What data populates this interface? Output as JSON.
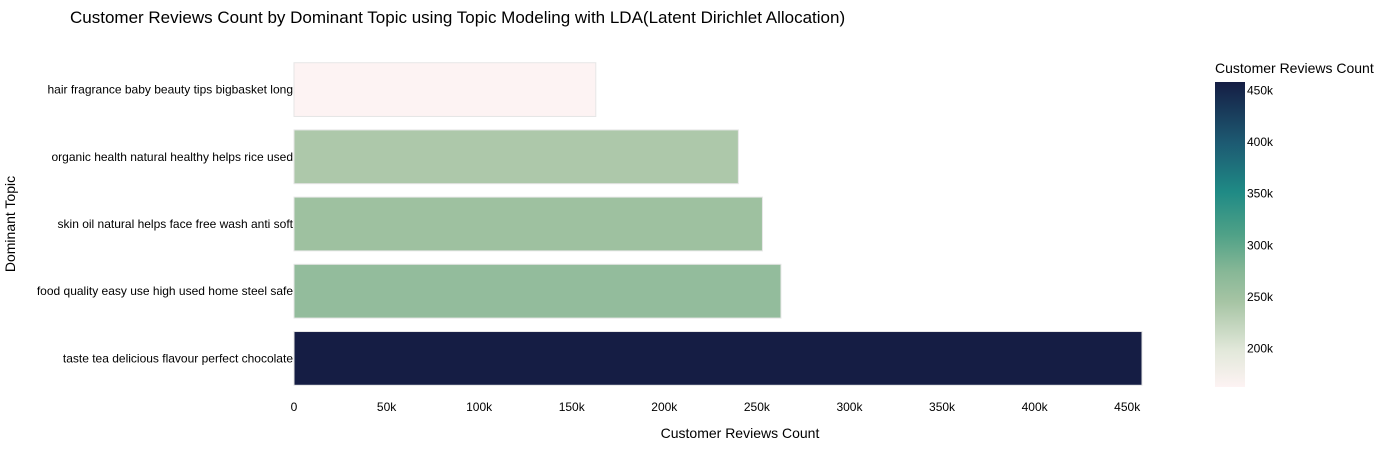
{
  "chart_data": {
    "type": "bar",
    "orientation": "horizontal",
    "title": "Customer Reviews Count by Dominant Topic using Topic Modeling with LDA(Latent Dirichlet Allocation)",
    "xlabel": "Customer Reviews Count",
    "ylabel": "Dominant Topic",
    "xlim": [
      0,
      458000
    ],
    "x_ticks": [
      0,
      50000,
      100000,
      150000,
      200000,
      250000,
      300000,
      350000,
      400000,
      450000
    ],
    "x_tick_labels": [
      "0",
      "50k",
      "100k",
      "150k",
      "200k",
      "250k",
      "300k",
      "350k",
      "400k",
      "450k"
    ],
    "categories": [
      "taste tea delicious flavour perfect chocolate",
      "food quality easy use high used home steel safe",
      "skin oil natural helps face free wash anti soft",
      "organic health natural healthy helps rice used",
      "hair fragrance baby beauty tips bigbasket long"
    ],
    "values": [
      458000,
      263000,
      253000,
      240000,
      163000
    ],
    "colorbar": {
      "title": "Customer Reviews Count",
      "min": 163000,
      "max": 458000,
      "ticks": [
        200000,
        250000,
        300000,
        350000,
        400000,
        450000
      ],
      "tick_labels": [
        "200k",
        "250k",
        "300k",
        "350k",
        "400k",
        "450k"
      ],
      "colorscale": [
        [
          0.0,
          "#fdf3f3"
        ],
        [
          0.12,
          "#e2e8da"
        ],
        [
          0.28,
          "#a6c4a4"
        ],
        [
          0.38,
          "#86b796"
        ],
        [
          0.5,
          "#4fa187"
        ],
        [
          0.64,
          "#1f8a85"
        ],
        [
          0.8,
          "#1d5a72"
        ],
        [
          1.0,
          "#151d44"
        ]
      ]
    },
    "grid": false,
    "bar_edge_color": "#e6e6e6"
  }
}
